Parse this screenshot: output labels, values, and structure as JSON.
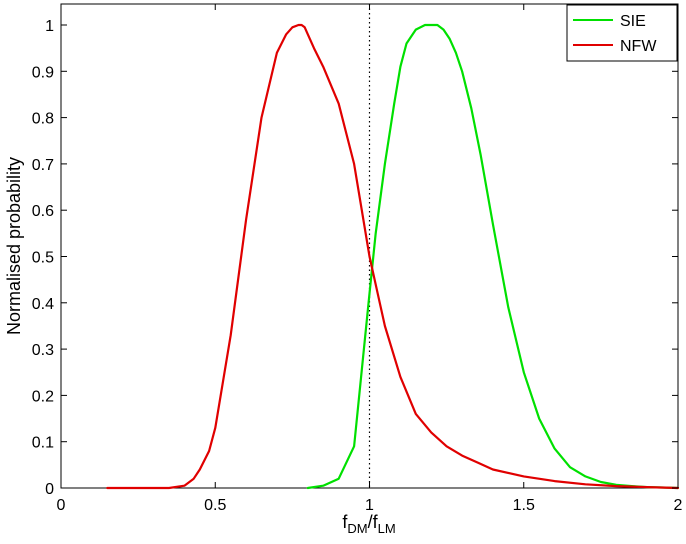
{
  "chart_data": {
    "type": "line",
    "xlabel_main": "f",
    "xlabel_sub1": "DM",
    "xlabel_mid": "/f",
    "xlabel_sub2": "LM",
    "ylabel": "Normalised probability",
    "xlim": [
      0,
      2
    ],
    "ylim": [
      0,
      1.05
    ],
    "x_ticks": [
      0,
      0.5,
      1,
      1.5,
      2
    ],
    "x_tick_labels": [
      "0",
      "0.5",
      "1",
      "1.5",
      "2"
    ],
    "y_ticks": [
      0,
      0.1,
      0.2,
      0.3,
      0.4,
      0.5,
      0.6,
      0.7,
      0.8,
      0.9,
      1
    ],
    "y_tick_labels": [
      "0",
      "0.1",
      "0.2",
      "0.3",
      "0.4",
      "0.5",
      "0.6",
      "0.7",
      "0.8",
      "0.9",
      "1"
    ],
    "grid": false,
    "legend_placement": "top-right",
    "reference_line": {
      "x": 1,
      "style": "dotted",
      "color": "#000000"
    },
    "series": [
      {
        "name": "SIE",
        "color": "#00e000",
        "x": [
          0.8,
          0.85,
          0.9,
          0.95,
          1.0,
          1.02,
          1.05,
          1.08,
          1.1,
          1.12,
          1.15,
          1.18,
          1.2,
          1.22,
          1.24,
          1.26,
          1.28,
          1.3,
          1.33,
          1.36,
          1.4,
          1.45,
          1.5,
          1.55,
          1.6,
          1.65,
          1.7,
          1.75,
          1.8,
          1.85,
          1.9,
          1.95,
          2.0
        ],
        "y": [
          0.0,
          0.005,
          0.02,
          0.09,
          0.42,
          0.55,
          0.7,
          0.83,
          0.91,
          0.96,
          0.99,
          1.0,
          1.0,
          1.0,
          0.99,
          0.97,
          0.94,
          0.9,
          0.82,
          0.72,
          0.57,
          0.39,
          0.25,
          0.15,
          0.085,
          0.045,
          0.025,
          0.013,
          0.007,
          0.004,
          0.002,
          0.001,
          0.0
        ]
      },
      {
        "name": "NFW",
        "color": "#e00000",
        "x": [
          0.15,
          0.35,
          0.4,
          0.43,
          0.45,
          0.48,
          0.5,
          0.55,
          0.6,
          0.65,
          0.7,
          0.73,
          0.75,
          0.77,
          0.78,
          0.79,
          0.8,
          0.82,
          0.85,
          0.9,
          0.95,
          1.0,
          1.05,
          1.1,
          1.15,
          1.2,
          1.25,
          1.3,
          1.35,
          1.4,
          1.5,
          1.6,
          1.7,
          1.8,
          1.9,
          2.0
        ],
        "y": [
          0.0,
          0.0,
          0.005,
          0.02,
          0.04,
          0.08,
          0.13,
          0.33,
          0.58,
          0.8,
          0.94,
          0.98,
          0.995,
          1.0,
          1.0,
          0.995,
          0.98,
          0.95,
          0.91,
          0.83,
          0.7,
          0.5,
          0.35,
          0.24,
          0.16,
          0.12,
          0.09,
          0.07,
          0.055,
          0.04,
          0.025,
          0.015,
          0.008,
          0.004,
          0.002,
          0.0
        ]
      }
    ]
  }
}
